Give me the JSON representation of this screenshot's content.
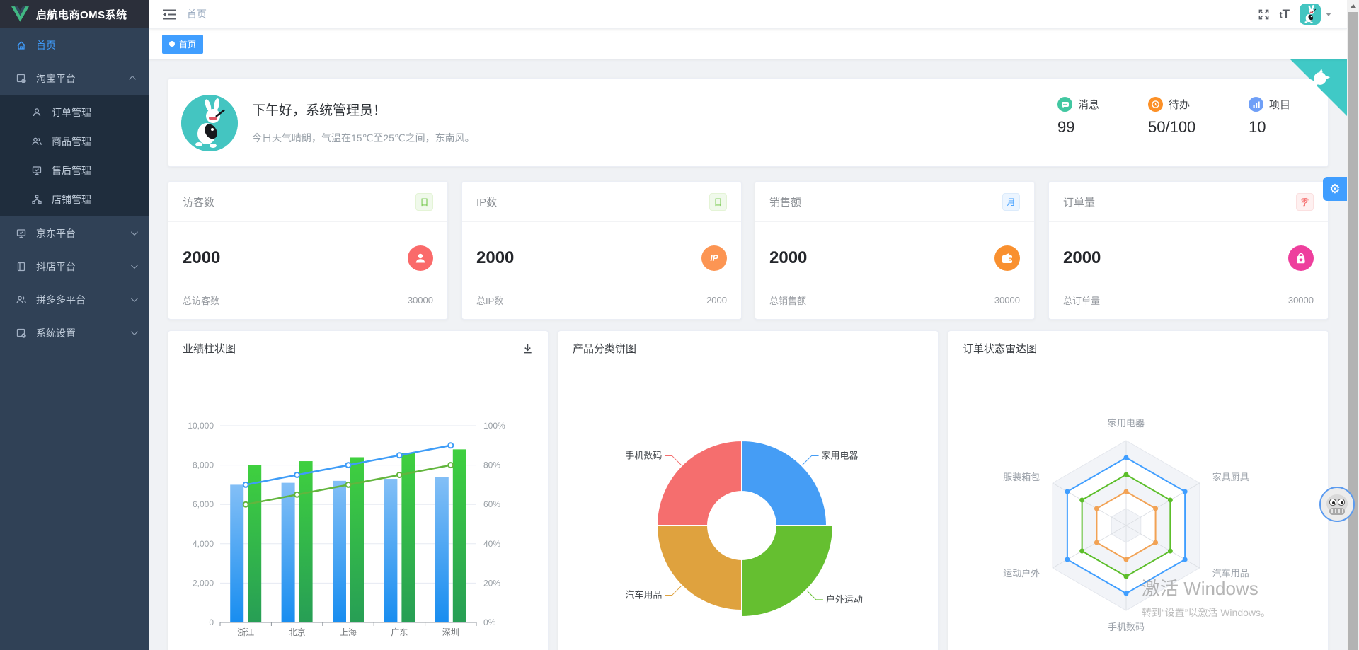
{
  "app": {
    "title": "启航电商OMS系统"
  },
  "theme": {
    "accent": "#409eff",
    "sidebar_bg": "#304156",
    "submenu_bg": "#1f2d3d",
    "logo_bg": "#2b2f3a",
    "content_bg": "#f0f2f5",
    "corner_teal": "#40c9c6",
    "avatar_teal": "#44c5c1"
  },
  "sidebar": {
    "items": [
      {
        "label": "首页",
        "icon": "home-icon",
        "active": true
      },
      {
        "label": "淘宝平台",
        "icon": "platform-doc-gear-icon",
        "expanded": true,
        "children": [
          {
            "label": "订单管理",
            "icon": "user-icon"
          },
          {
            "label": "商品管理",
            "icon": "peoples-icon"
          },
          {
            "label": "售后管理",
            "icon": "monitor-icon"
          },
          {
            "label": "店铺管理",
            "icon": "connection-icon"
          }
        ]
      },
      {
        "label": "京东平台",
        "icon": "monitor-icon"
      },
      {
        "label": "抖店平台",
        "icon": "notebook-icon"
      },
      {
        "label": "拼多多平台",
        "icon": "peoples-icon"
      },
      {
        "label": "系统设置",
        "icon": "doc-gear-icon"
      }
    ]
  },
  "navbar": {
    "breadcrumb": "首页",
    "fontsize_icon_small": "t",
    "fontsize_icon_big": "T"
  },
  "tags": [
    {
      "label": "首页",
      "active": true
    }
  ],
  "welcome": {
    "greeting": "下午好，系统管理员！",
    "weather": "今日天气晴朗，气温在15℃至25℃之间，东南风。",
    "stats": [
      {
        "label": "消息",
        "value": "99",
        "icon": "message-icon",
        "color": "#42c7a1"
      },
      {
        "label": "待办",
        "value": "50/100",
        "icon": "clock-icon",
        "color": "#fc9027"
      },
      {
        "label": "项目",
        "value": "10",
        "icon": "bar-chart-icon",
        "color": "#6f9ff7"
      }
    ]
  },
  "stat_cards": [
    {
      "title": "访客数",
      "badge": "日",
      "badge_type": "green",
      "value": "2000",
      "icon": "visitor-user-icon",
      "icon_color": "#fa6a6a",
      "icon_text": "",
      "footer_label": "总访客数",
      "footer_value": "30000"
    },
    {
      "title": "IP数",
      "badge": "日",
      "badge_type": "green",
      "value": "2000",
      "icon": "ip-icon",
      "icon_color": "#fc9553",
      "icon_text": "IP",
      "footer_label": "总IP数",
      "footer_value": "2000"
    },
    {
      "title": "销售额",
      "badge": "月",
      "badge_type": "blue",
      "value": "2000",
      "icon": "wallet-icon",
      "icon_color": "#f9902f",
      "icon_text": "",
      "footer_label": "总销售额",
      "footer_value": "30000"
    },
    {
      "title": "订单量",
      "badge": "季",
      "badge_type": "red",
      "value": "2000",
      "icon": "shopping-bag-icon",
      "icon_color": "#ee3f9d",
      "icon_text": "",
      "footer_label": "总订单量",
      "footer_value": "30000"
    }
  ],
  "chart_data": [
    {
      "type": "bar",
      "title": "业绩柱状图",
      "categories": [
        "浙江",
        "北京",
        "上海",
        "广东",
        "深圳"
      ],
      "series": [
        {
          "type": "bar",
          "axis": "left",
          "values": [
            7000,
            7100,
            7200,
            7300,
            7400
          ],
          "gradient": [
            "#83bff6",
            "#188df0"
          ]
        },
        {
          "type": "bar",
          "axis": "left",
          "values": [
            8000,
            8200,
            8400,
            8600,
            8800
          ],
          "gradient": [
            "#3fd03f",
            "#279e55"
          ]
        },
        {
          "type": "line",
          "axis": "right",
          "values": [
            70,
            75,
            80,
            85,
            90
          ],
          "color": "#3e9cf7"
        },
        {
          "type": "line",
          "axis": "right",
          "values": [
            60,
            65,
            70,
            75,
            80
          ],
          "color": "#62b53d"
        }
      ],
      "ylim_left": [
        0,
        10000
      ],
      "ylim_right": [
        0,
        100
      ],
      "yticks_left": [
        "0",
        "2,000",
        "4,000",
        "6,000",
        "8,000",
        "10,000"
      ],
      "yticks_right": [
        "0%",
        "20%",
        "40%",
        "60%",
        "80%",
        "100%"
      ],
      "grid": true,
      "legend": false
    },
    {
      "type": "pie",
      "title": "产品分类饼图",
      "slices": [
        {
          "label": "家用电器",
          "value": 25,
          "color": "#459df5"
        },
        {
          "label": "户外运动",
          "value": 25,
          "color": "#65bf30"
        },
        {
          "label": "汽车用品",
          "value": 25,
          "color": "#dfa23e"
        },
        {
          "label": "手机数码",
          "value": 25,
          "color": "#f56e6e"
        }
      ],
      "donut": true,
      "legend": false
    },
    {
      "type": "radar",
      "title": "订单状态雷达图",
      "axes": [
        "家用电器",
        "家具厨具",
        "汽车用品",
        "手机数码",
        "运动户外",
        "服装箱包"
      ],
      "max": 100,
      "series": [
        {
          "values": [
            80,
            80,
            80,
            80,
            80,
            80
          ],
          "color": "#409eff"
        },
        {
          "values": [
            60,
            60,
            60,
            60,
            60,
            60
          ],
          "color": "#5cbe2a"
        },
        {
          "values": [
            40,
            40,
            40,
            40,
            40,
            40
          ],
          "color": "#f2a254"
        }
      ],
      "legend": false
    }
  ],
  "watermark": {
    "line1": "激活 Windows",
    "line2": "转到“设置”以激活 Windows。"
  }
}
